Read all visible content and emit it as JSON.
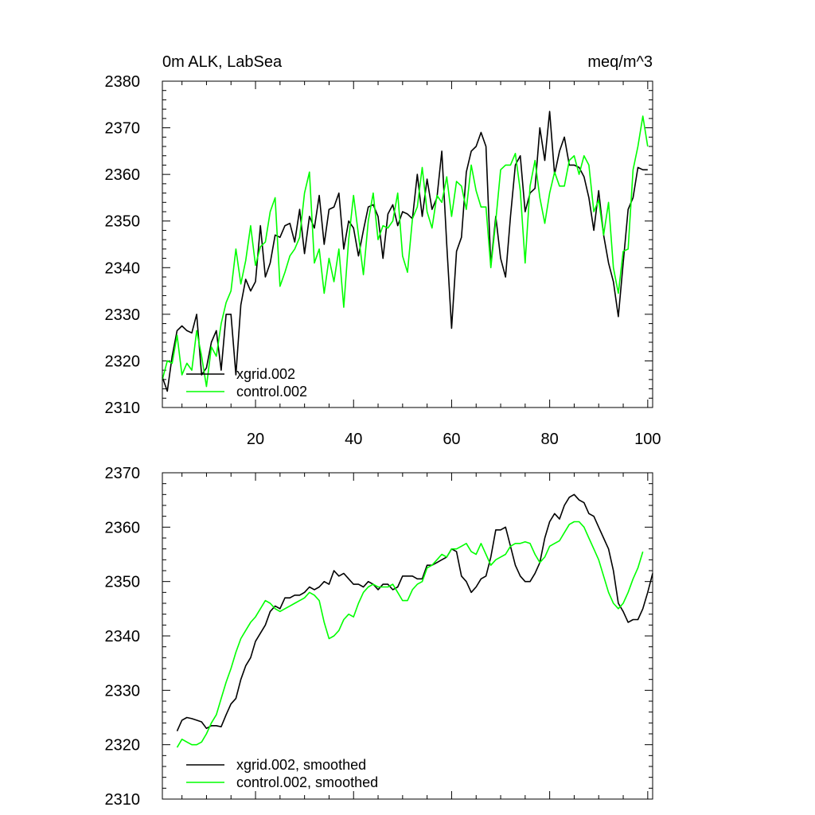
{
  "colors": {
    "xgrid": "#000000",
    "control": "#00ff00",
    "background": "#ffffff"
  },
  "chart_data": [
    {
      "type": "line",
      "title_left": "0m ALK, LabSea",
      "title_right": "meq/m^3",
      "xlim": [
        1,
        101
      ],
      "ylim": [
        2310,
        2380
      ],
      "yticks": [
        2310,
        2320,
        2330,
        2340,
        2350,
        2360,
        2370,
        2380
      ],
      "xticks": [
        20,
        40,
        60,
        80,
        100
      ],
      "xtick_labels": [
        "20",
        "40",
        "60",
        "80",
        "100"
      ],
      "series": [
        {
          "name": "xgrid.002",
          "color": "#000000",
          "values": [
            2316.5,
            2313.5,
            2321.0,
            2326.5,
            2327.5,
            2326.5,
            2326.0,
            2330.0,
            2317.0,
            2318.5,
            2324.0,
            2326.5,
            2318.0,
            2330.0,
            2330.0,
            2317.0,
            2332.0,
            2337.5,
            2335.0,
            2337.0,
            2349.0,
            2338.0,
            2341.0,
            2347.0,
            2346.5,
            2349.0,
            2349.5,
            2345.5,
            2352.5,
            2343.0,
            2351.0,
            2348.5,
            2355.5,
            2345.0,
            2352.5,
            2353.0,
            2356.0,
            2344.0,
            2350.0,
            2348.5,
            2342.5,
            2348.0,
            2353.0,
            2353.5,
            2351.0,
            2342.0,
            2351.5,
            2353.5,
            2349.0,
            2352.0,
            2351.5,
            2350.5,
            2360.0,
            2351.0,
            2359.0,
            2352.5,
            2355.0,
            2365.0,
            2345.0,
            2327.0,
            2343.5,
            2346.5,
            2360.5,
            2365.0,
            2366.0,
            2369.0,
            2366.0,
            2340.5,
            2351.0,
            2342.0,
            2338.0,
            2351.0,
            2362.0,
            2364.0,
            2352.0,
            2356.0,
            2357.0,
            2370.0,
            2363.0,
            2373.5,
            2360.0,
            2365.0,
            2368.0,
            2362.0,
            2362.0,
            2361.5,
            2359.5,
            2355.0,
            2348.0,
            2356.5,
            2347.0,
            2341.0,
            2337.0,
            2329.5,
            2341.0,
            2352.5,
            2355.0,
            2361.5,
            2361.0,
            2361.0
          ]
        },
        {
          "name": "control.002",
          "color": "#00ff00",
          "values": [
            2316.0,
            2320.0,
            2319.5,
            2325.5,
            2317.0,
            2319.5,
            2318.0,
            2326.5,
            2321.0,
            2314.5,
            2323.0,
            2321.0,
            2328.0,
            2332.5,
            2335.0,
            2344.0,
            2336.5,
            2341.5,
            2349.0,
            2340.5,
            2344.5,
            2345.5,
            2352.0,
            2355.0,
            2336.0,
            2339.0,
            2342.5,
            2344.0,
            2346.5,
            2356.0,
            2360.5,
            2341.0,
            2344.0,
            2334.5,
            2342.0,
            2337.0,
            2344.0,
            2331.5,
            2346.0,
            2355.5,
            2347.0,
            2338.5,
            2350.0,
            2356.0,
            2346.0,
            2349.0,
            2348.5,
            2350.0,
            2356.0,
            2342.5,
            2339.0,
            2350.5,
            2353.0,
            2361.5,
            2352.0,
            2348.5,
            2355.5,
            2354.0,
            2359.5,
            2351.0,
            2358.5,
            2357.5,
            2352.5,
            2362.0,
            2356.5,
            2353.0,
            2353.0,
            2340.0,
            2350.0,
            2361.0,
            2362.0,
            2362.0,
            2364.5,
            2356.5,
            2341.0,
            2357.5,
            2363.0,
            2355.0,
            2349.5,
            2356.0,
            2360.5,
            2357.5,
            2357.5,
            2363.0,
            2364.0,
            2360.0,
            2364.0,
            2362.0,
            2352.0,
            2354.5,
            2347.0,
            2354.0,
            2340.0,
            2334.5,
            2343.5,
            2344.0,
            2361.0,
            2366.0,
            2372.5,
            2366.0
          ]
        }
      ],
      "legend": {
        "position": "bottom-left",
        "entries": [
          "xgrid.002",
          "control.002"
        ]
      }
    },
    {
      "type": "line",
      "xlim": [
        1,
        101
      ],
      "ylim": [
        2310,
        2370
      ],
      "yticks": [
        2310,
        2320,
        2330,
        2340,
        2350,
        2360,
        2370
      ],
      "xticks": [
        20,
        40,
        60,
        80,
        100
      ],
      "series": [
        {
          "name": "xgrid.002, smoothed",
          "color": "#000000",
          "values": [
            null,
            null,
            null,
            2322.5,
            2324.5,
            2325.0,
            2324.8,
            2324.5,
            2324.2,
            2323.0,
            2323.5,
            2323.5,
            2323.3,
            2325.5,
            2327.5,
            2328.5,
            2332.0,
            2334.5,
            2336.0,
            2339.0,
            2340.5,
            2342.0,
            2344.5,
            2345.5,
            2345.0,
            2347.0,
            2347.0,
            2347.5,
            2347.5,
            2348.0,
            2349.0,
            2348.5,
            2349.0,
            2350.0,
            2349.5,
            2352.0,
            2351.0,
            2351.5,
            2350.5,
            2349.5,
            2349.5,
            2349.0,
            2350.0,
            2349.5,
            2348.5,
            2349.5,
            2349.5,
            2348.5,
            2349.0,
            2351.0,
            2351.0,
            2351.0,
            2350.5,
            2350.5,
            2353.0,
            2353.0,
            2353.5,
            2354.0,
            2354.5,
            2356.0,
            2355.5,
            2351.0,
            2350.0,
            2348.0,
            2349.0,
            2350.5,
            2351.0,
            2354.5,
            2359.5,
            2359.5,
            2360.0,
            2356.5,
            2353.0,
            2351.0,
            2350.0,
            2350.0,
            2351.5,
            2353.5,
            2358.0,
            2361.0,
            2362.5,
            2361.5,
            2364.0,
            2365.5,
            2366.0,
            2365.0,
            2364.5,
            2362.5,
            2362.0,
            2360.0,
            2358.0,
            2356.0,
            2352.0,
            2346.0,
            2344.5,
            2342.5,
            2343.0,
            2343.0,
            2345.0,
            2348.0,
            2351.5
          ]
        },
        {
          "name": "control.002, smoothed",
          "color": "#00ff00",
          "values": [
            null,
            null,
            null,
            2319.5,
            2321.0,
            2320.5,
            2320.0,
            2320.0,
            2320.5,
            2322.0,
            2324.0,
            2325.5,
            2328.5,
            2331.5,
            2334.0,
            2337.0,
            2339.5,
            2341.0,
            2342.5,
            2343.5,
            2345.0,
            2346.5,
            2346.0,
            2345.0,
            2344.5,
            2345.0,
            2345.5,
            2346.0,
            2346.5,
            2347.0,
            2348.0,
            2347.5,
            2346.5,
            2342.5,
            2339.5,
            2340.0,
            2341.0,
            2343.0,
            2344.0,
            2343.5,
            2346.0,
            2348.0,
            2349.0,
            2349.5,
            2349.0,
            2349.0,
            2349.0,
            2349.5,
            2348.0,
            2346.5,
            2346.5,
            2348.5,
            2349.5,
            2350.0,
            2352.5,
            2353.0,
            2354.0,
            2355.0,
            2354.5,
            2356.0,
            2356.0,
            2356.5,
            2357.0,
            2355.5,
            2355.0,
            2357.0,
            2355.0,
            2353.0,
            2354.0,
            2354.5,
            2355.0,
            2356.5,
            2357.0,
            2357.0,
            2357.3,
            2357.0,
            2355.0,
            2353.5,
            2354.5,
            2356.5,
            2357.0,
            2357.5,
            2359.0,
            2360.5,
            2361.0,
            2361.0,
            2360.0,
            2358.0,
            2356.0,
            2354.0,
            2351.0,
            2348.0,
            2346.0,
            2345.0,
            2346.0,
            2348.0,
            2350.5,
            2352.5,
            2355.5
          ]
        }
      ],
      "legend": {
        "position": "bottom-left",
        "entries": [
          "xgrid.002, smoothed",
          "control.002, smoothed"
        ]
      }
    }
  ]
}
